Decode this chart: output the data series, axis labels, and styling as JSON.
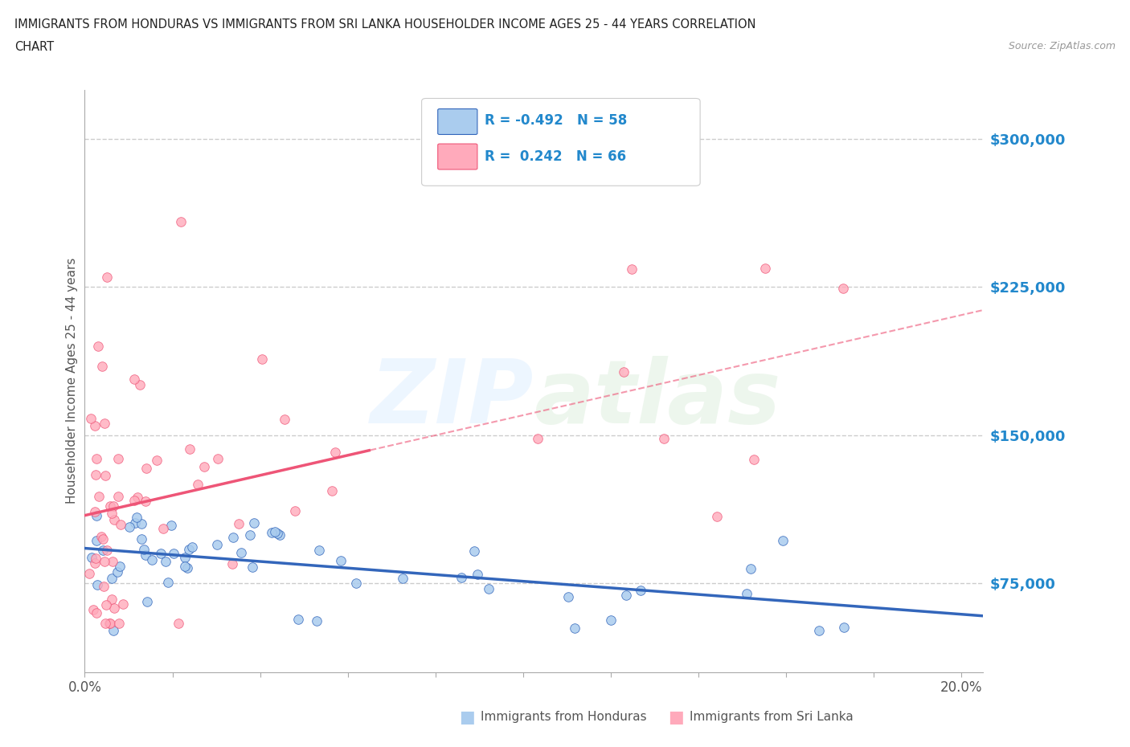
{
  "title_line1": "IMMIGRANTS FROM HONDURAS VS IMMIGRANTS FROM SRI LANKA HOUSEHOLDER INCOME AGES 25 - 44 YEARS CORRELATION",
  "title_line2": "CHART",
  "source_text": "Source: ZipAtlas.com",
  "ylabel": "Householder Income Ages 25 - 44 years",
  "xlim": [
    0.0,
    0.205
  ],
  "ylim": [
    30000,
    325000
  ],
  "yticks": [
    75000,
    150000,
    225000,
    300000
  ],
  "ytick_labels": [
    "$75,000",
    "$150,000",
    "$225,000",
    "$300,000"
  ],
  "grid_color": "#cccccc",
  "color_honduras": "#aaccee",
  "color_srilanka": "#ffaabb",
  "trendline_color_honduras": "#3366bb",
  "trendline_color_srilanka": "#ee5577",
  "legend_text1": "R = -0.492   N = 58",
  "legend_text2": "R =  0.242   N = 66",
  "bottom_legend1": "Immigrants from Honduras",
  "bottom_legend2": "Immigrants from Sri Lanka"
}
